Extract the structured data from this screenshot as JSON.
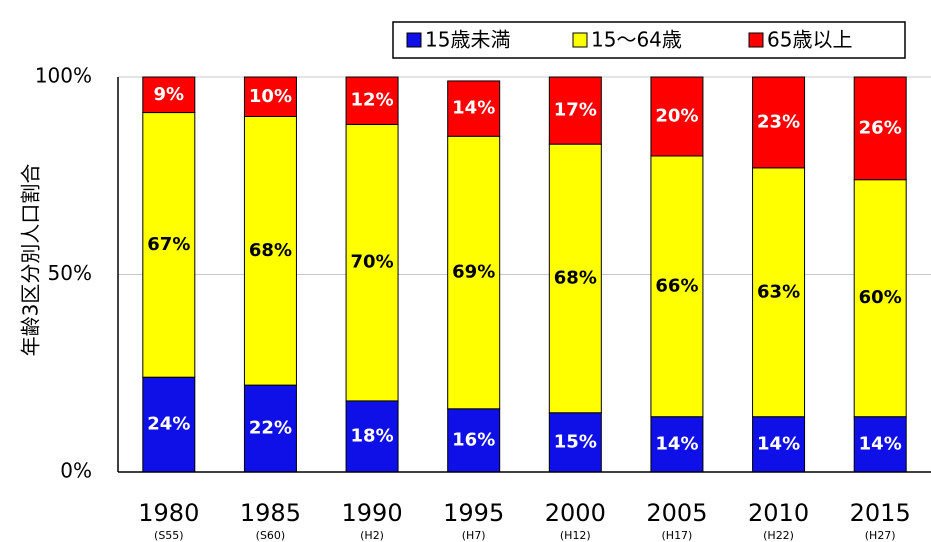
{
  "chart_data": {
    "type": "stacked_bar",
    "y_axis_label": "年齢3区分別人口割合",
    "categories": [
      "1980",
      "1985",
      "1990",
      "1995",
      "2000",
      "2005",
      "2010",
      "2015"
    ],
    "category_sublabels": [
      "(S55)",
      "(S60)",
      "(H2)",
      "(H7)",
      "(H12)",
      "(H17)",
      "(H22)",
      "(H27)"
    ],
    "series": [
      {
        "name": "15歳未満",
        "color": "#0f0fe8",
        "label_color": "#ffffff",
        "values": [
          24,
          22,
          18,
          16,
          15,
          14,
          14,
          14
        ],
        "value_labels": [
          "24%",
          "22%",
          "18%",
          "16%",
          "15%",
          "14%",
          "14%",
          "14%"
        ]
      },
      {
        "name": "15～64歳",
        "color": "#ffff00",
        "label_color": "#000000",
        "values": [
          67,
          68,
          70,
          69,
          68,
          66,
          63,
          60
        ],
        "value_labels": [
          "67%",
          "68%",
          "70%",
          "69%",
          "68%",
          "66%",
          "63%",
          "60%"
        ]
      },
      {
        "name": "65歳以上",
        "color": "#ff0000",
        "label_color": "#ffffff",
        "values": [
          9,
          10,
          12,
          14,
          17,
          20,
          23,
          26
        ],
        "value_labels": [
          "9%",
          "10%",
          "12%",
          "14%",
          "17%",
          "20%",
          "23%",
          "26%"
        ]
      }
    ],
    "ylim": [
      0,
      100
    ],
    "yticks": [
      {
        "value": 0,
        "label": "0%"
      },
      {
        "value": 50,
        "label": "50%"
      },
      {
        "value": 100,
        "label": "100%"
      }
    ],
    "grid": true,
    "legend_position": "top-right"
  }
}
